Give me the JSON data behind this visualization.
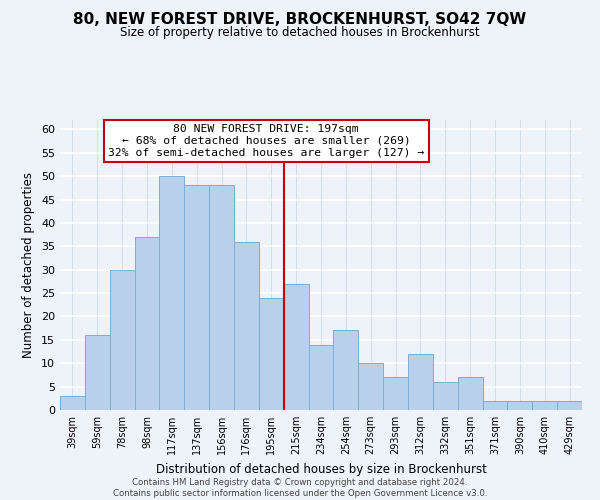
{
  "title": "80, NEW FOREST DRIVE, BROCKENHURST, SO42 7QW",
  "subtitle": "Size of property relative to detached houses in Brockenhurst",
  "xlabel": "Distribution of detached houses by size in Brockenhurst",
  "ylabel": "Number of detached properties",
  "bar_labels": [
    "39sqm",
    "59sqm",
    "78sqm",
    "98sqm",
    "117sqm",
    "137sqm",
    "156sqm",
    "176sqm",
    "195sqm",
    "215sqm",
    "234sqm",
    "254sqm",
    "273sqm",
    "293sqm",
    "312sqm",
    "332sqm",
    "351sqm",
    "371sqm",
    "390sqm",
    "410sqm",
    "429sqm"
  ],
  "bar_values": [
    3,
    16,
    30,
    37,
    50,
    48,
    48,
    36,
    24,
    27,
    14,
    17,
    10,
    7,
    12,
    6,
    7,
    2,
    2,
    2,
    2
  ],
  "bar_color": "#b8d0ea",
  "bar_edge_color": "#7aaed4",
  "vline_x_idx": 8.5,
  "vline_color": "#cc0000",
  "annotation_title": "80 NEW FOREST DRIVE: 197sqm",
  "annotation_line1": "← 68% of detached houses are smaller (269)",
  "annotation_line2": "32% of semi-detached houses are larger (127) →",
  "annotation_box_edge": "#cc0000",
  "ylim": [
    0,
    62
  ],
  "yticks": [
    0,
    5,
    10,
    15,
    20,
    25,
    30,
    35,
    40,
    45,
    50,
    55,
    60
  ],
  "footer_line1": "Contains HM Land Registry data © Crown copyright and database right 2024.",
  "footer_line2": "Contains public sector information licensed under the Open Government Licence v3.0.",
  "background_color": "#eef2f9"
}
